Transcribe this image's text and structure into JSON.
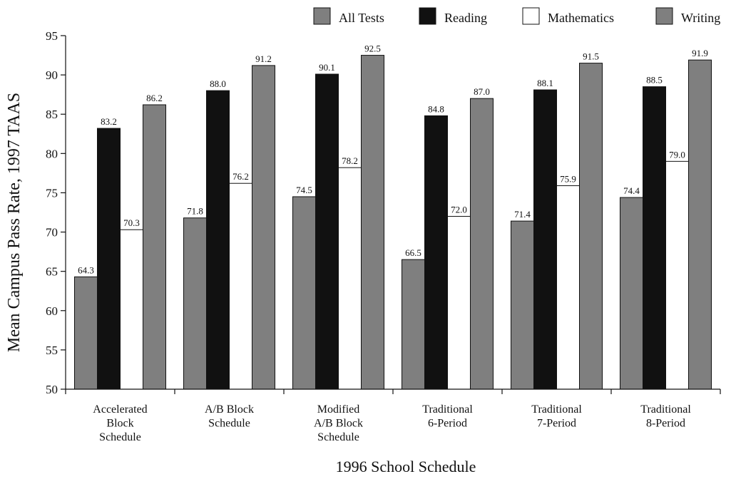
{
  "chart_data": {
    "type": "bar",
    "xlabel": "1996 School Schedule",
    "ylabel": "Mean Campus Pass Rate, 1997 TAAS",
    "ylim": [
      50,
      95
    ],
    "yticks": [
      50,
      55,
      60,
      65,
      70,
      75,
      80,
      85,
      90,
      95
    ],
    "legend_position": "top",
    "categories": [
      [
        "Accelerated",
        "Block",
        "Schedule"
      ],
      [
        "A/B Block",
        "Schedule"
      ],
      [
        "Modified",
        "A/B Block",
        "Schedule"
      ],
      [
        "Traditional",
        "6-Period"
      ],
      [
        "Traditional",
        "7-Period"
      ],
      [
        "Traditional",
        "8-Period"
      ]
    ],
    "series": [
      {
        "name": "All Tests",
        "color": "#7f7f7f",
        "values": [
          64.3,
          71.8,
          74.5,
          66.5,
          71.4,
          74.4
        ],
        "labels": [
          "64.3",
          "71.8",
          "74.5",
          "66.5",
          "71.4",
          "74.4"
        ]
      },
      {
        "name": "Reading",
        "color": "#111111",
        "values": [
          83.2,
          88.0,
          90.1,
          84.8,
          88.1,
          88.5
        ],
        "labels": [
          "83.2",
          "88.0",
          "90.1",
          "84.8",
          "88.1",
          "88.5"
        ]
      },
      {
        "name": "Mathematics",
        "color": "#ffffff",
        "values": [
          70.3,
          76.2,
          78.2,
          72.0,
          75.9,
          79.0
        ],
        "labels": [
          "70.3",
          "76.2",
          "78.2",
          "72.0",
          "75.9",
          "79.0"
        ]
      },
      {
        "name": "Writing",
        "color": "#7f7f7f",
        "values": [
          86.2,
          91.2,
          92.5,
          87.0,
          91.5,
          91.9
        ],
        "labels": [
          "86.2",
          "91.2",
          "92.5",
          "87.0",
          "91.5",
          "91.9"
        ]
      }
    ]
  }
}
